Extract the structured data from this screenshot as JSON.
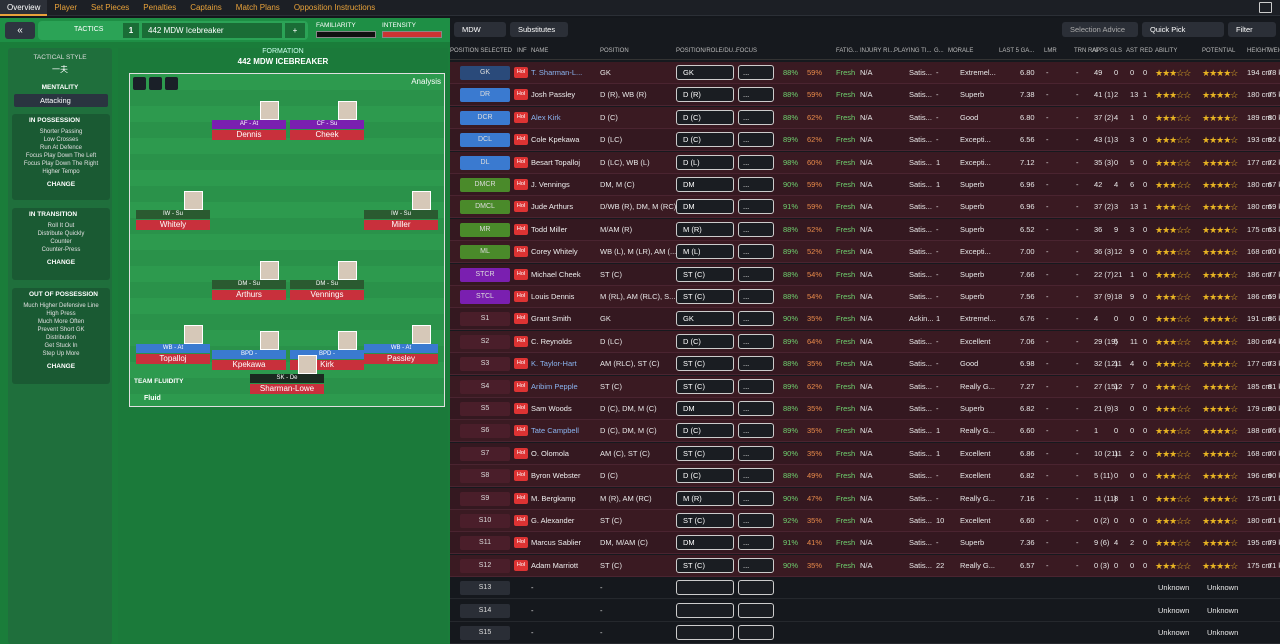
{
  "topnav": {
    "tabs": [
      "Overview",
      "Player",
      "Set Pieces",
      "Penalties",
      "Captains",
      "Match Plans",
      "Opposition Instructions"
    ]
  },
  "tactics": {
    "label": "TACTICS",
    "number": "1",
    "name": "442 MDW Icebreaker",
    "familiarity": "FAMILIARITY",
    "intensity": "INTENSITY"
  },
  "sidebar": {
    "tactical_style_label": "TACTICAL STYLE",
    "tactical_style": "一夫",
    "mentality_label": "MENTALITY",
    "mentality": "Attacking",
    "in_possession": {
      "title": "IN POSSESSION",
      "items": [
        "Shorter Passing",
        "Low Crosses",
        "Run At Defence",
        "Focus Play Down The Left",
        "Focus Play Down The Right",
        "Higher Tempo"
      ],
      "change": "CHANGE"
    },
    "in_transition": {
      "title": "IN TRANSITION",
      "items": [
        "Roll It Out",
        "Distribute Quickly",
        "Counter",
        "Counter-Press"
      ],
      "change": "CHANGE"
    },
    "out_possession": {
      "title": "OUT OF POSSESSION",
      "items": [
        "Much Higher Defensive Line",
        "High Press",
        "Much More Often",
        "Prevent Short GK",
        "Distribution",
        "Get Stuck In",
        "Step Up More"
      ],
      "change": "CHANGE"
    }
  },
  "formation": {
    "label": "FORMATION",
    "name": "442 MDW ICEBREAKER",
    "analysis": "Analysis",
    "team_fluidity": "TEAM FLUIDITY",
    "fluidity": "Fluid",
    "players": [
      {
        "role": "AF - At",
        "name": "Dennis"
      },
      {
        "role": "CF - Su",
        "name": "Cheek"
      },
      {
        "role": "IW - Su",
        "name": "Whitely"
      },
      {
        "role": "IW - Su",
        "name": "Miller"
      },
      {
        "role": "DM - Su",
        "name": "Arthurs"
      },
      {
        "role": "DM - Su",
        "name": "Vennings"
      },
      {
        "role": "WB - At",
        "name": "Topalloj"
      },
      {
        "role": "BPD - ",
        "name": "Kpekawa"
      },
      {
        "role": "BPD - ",
        "name": "Kirk"
      },
      {
        "role": "WB - At",
        "name": "Passley"
      },
      {
        "role": "SK - De",
        "name": "Sharman-Lowe"
      }
    ]
  },
  "toolbar": {
    "view": "MDW",
    "substitutes": "Substitutes",
    "selection_advice": "Selection Advice",
    "quick_pick": "Quick Pick",
    "filter": "Filter"
  },
  "headers": [
    "POSITION SELECTED",
    "INF",
    "NAME",
    "POSITION",
    "POSITION/ROLE/DU...",
    "FOCUS",
    "FATIG...",
    "INJURY RI...",
    "PLAYING TI...",
    "G...",
    "MORALE",
    "LAST 5 GA...",
    "LMR",
    "TRN RAT",
    "APPS",
    "GLS",
    "AST",
    "RED",
    "ABILITY",
    "POTENTIAL",
    "HEIGHT",
    "WEIG"
  ],
  "rows": [
    {
      "pos": "GK",
      "name": "T. Sharman-L...",
      "position": "GK",
      "role": "GK",
      "cond": "88%",
      "sharp": "59%",
      "fat": "Fresh",
      "inj": "N/A",
      "pt": "Satis...",
      "g": "-",
      "morale": "Extremel...",
      "rating": "6.80",
      "apps": "49",
      "gls": "0",
      "ast": "0",
      "red": "0",
      "height": "194 cm",
      "weight": "78 k"
    },
    {
      "pos": "DR",
      "name": "Josh Passley",
      "position": "D (R), WB (R)",
      "role": "D (R)",
      "cond": "88%",
      "sharp": "59%",
      "fat": "Fresh",
      "inj": "N/A",
      "pt": "Satis...",
      "g": "-",
      "morale": "Superb",
      "rating": "7.38",
      "apps": "41 (1)",
      "gls": "2",
      "ast": "13",
      "red": "1",
      "height": "180 cm",
      "weight": "75 k"
    },
    {
      "pos": "DCR",
      "name": "Alex Kirk",
      "position": "D (C)",
      "role": "D (C)",
      "cond": "88%",
      "sharp": "62%",
      "fat": "Fresh",
      "inj": "N/A",
      "pt": "Satis...",
      "g": "-",
      "morale": "Good",
      "rating": "6.80",
      "apps": "37 (2)",
      "gls": "4",
      "ast": "1",
      "red": "0",
      "height": "189 cm",
      "weight": "80 k"
    },
    {
      "pos": "DCL",
      "name": "Cole Kpekawa",
      "position": "D (LC)",
      "role": "D (C)",
      "cond": "89%",
      "sharp": "62%",
      "fat": "Fresh",
      "inj": "N/A",
      "pt": "Satis...",
      "g": "-",
      "morale": "Excepti...",
      "rating": "6.56",
      "apps": "43 (1)",
      "gls": "3",
      "ast": "3",
      "red": "0",
      "height": "193 cm",
      "weight": "92 k"
    },
    {
      "pos": "DL",
      "name": "Besart Topalloj",
      "position": "D (LC), WB (L)",
      "role": "D (L)",
      "cond": "98%",
      "sharp": "60%",
      "fat": "Fresh",
      "inj": "N/A",
      "pt": "Satis...",
      "g": "1",
      "morale": "Excepti...",
      "rating": "7.12",
      "apps": "35 (3)",
      "gls": "0",
      "ast": "5",
      "red": "0",
      "height": "177 cm",
      "weight": "72 k"
    },
    {
      "pos": "DMCR",
      "name": "J. Vennings",
      "position": "DM, M (C)",
      "role": "DM",
      "cond": "90%",
      "sharp": "59%",
      "fat": "Fresh",
      "inj": "N/A",
      "pt": "Satis...",
      "g": "1",
      "morale": "Superb",
      "rating": "6.96",
      "apps": "42",
      "gls": "4",
      "ast": "6",
      "red": "0",
      "height": "180 cm",
      "weight": "67 k"
    },
    {
      "pos": "DMCL",
      "name": "Jude Arthurs",
      "position": "D/WB (R), DM, M (RC)",
      "role": "DM",
      "cond": "91%",
      "sharp": "59%",
      "fat": "Fresh",
      "inj": "N/A",
      "pt": "Satis...",
      "g": "-",
      "morale": "Superb",
      "rating": "6.96",
      "apps": "37 (2)",
      "gls": "3",
      "ast": "13",
      "red": "1",
      "height": "180 cm",
      "weight": "69 k"
    },
    {
      "pos": "MR",
      "name": "Todd Miller",
      "position": "M/AM (R)",
      "role": "M (R)",
      "cond": "88%",
      "sharp": "52%",
      "fat": "Fresh",
      "inj": "N/A",
      "pt": "Satis...",
      "g": "-",
      "morale": "Superb",
      "rating": "6.52",
      "apps": "36",
      "gls": "9",
      "ast": "3",
      "red": "0",
      "height": "175 cm",
      "weight": "63 k"
    },
    {
      "pos": "ML",
      "name": "Corey Whitely",
      "position": "WB (L), M (LR), AM (...",
      "role": "M (L)",
      "cond": "89%",
      "sharp": "52%",
      "fat": "Fresh",
      "inj": "N/A",
      "pt": "Satis...",
      "g": "-",
      "morale": "Excepti...",
      "rating": "7.00",
      "apps": "36 (3)",
      "gls": "12",
      "ast": "9",
      "red": "0",
      "height": "168 cm",
      "weight": "70 k"
    },
    {
      "pos": "STCR",
      "name": "Michael Cheek",
      "position": "ST (C)",
      "role": "ST (C)",
      "cond": "88%",
      "sharp": "54%",
      "fat": "Fresh",
      "inj": "N/A",
      "pt": "Satis...",
      "g": "-",
      "morale": "Superb",
      "rating": "7.66",
      "apps": "22 (7)",
      "gls": "21",
      "ast": "1",
      "red": "0",
      "height": "186 cm",
      "weight": "77 k"
    },
    {
      "pos": "STCL",
      "name": "Louis Dennis",
      "position": "M (RL), AM (RLC), S...",
      "role": "ST (C)",
      "cond": "88%",
      "sharp": "54%",
      "fat": "Fresh",
      "inj": "N/A",
      "pt": "Satis...",
      "g": "-",
      "morale": "Superb",
      "rating": "7.56",
      "apps": "37 (9)",
      "gls": "18",
      "ast": "9",
      "red": "0",
      "height": "186 cm",
      "weight": "69 k"
    },
    {
      "pos": "S1",
      "name": "Grant Smith",
      "position": "GK",
      "role": "GK",
      "cond": "90%",
      "sharp": "35%",
      "fat": "Fresh",
      "inj": "N/A",
      "pt": "Askin...",
      "g": "1",
      "morale": "Extremel...",
      "rating": "6.76",
      "apps": "4",
      "gls": "0",
      "ast": "0",
      "red": "0",
      "height": "191 cm",
      "weight": "86 k"
    },
    {
      "pos": "S2",
      "name": "C. Reynolds",
      "position": "D (LC)",
      "role": "D (C)",
      "cond": "89%",
      "sharp": "64%",
      "fat": "Fresh",
      "inj": "N/A",
      "pt": "Satis...",
      "g": "-",
      "morale": "Excellent",
      "rating": "7.06",
      "apps": "29 (19)",
      "gls": "5",
      "ast": "11",
      "red": "0",
      "height": "180 cm",
      "weight": "74 k"
    },
    {
      "pos": "S3",
      "name": "K. Taylor-Hart",
      "position": "AM (RLC), ST (C)",
      "role": "ST (C)",
      "cond": "88%",
      "sharp": "35%",
      "fat": "Fresh",
      "inj": "N/A",
      "pt": "Satis...",
      "g": "-",
      "morale": "Good",
      "rating": "6.98",
      "apps": "32 (12)",
      "gls": "11",
      "ast": "4",
      "red": "0",
      "height": "177 cm",
      "weight": "73 k"
    },
    {
      "pos": "S4",
      "name": "Aribim Pepple",
      "position": "ST (C)",
      "role": "ST (C)",
      "cond": "89%",
      "sharp": "62%",
      "fat": "Fresh",
      "inj": "N/A",
      "pt": "Satis...",
      "g": "-",
      "morale": "Really G...",
      "rating": "7.27",
      "apps": "27 (15)",
      "gls": "12",
      "ast": "7",
      "red": "0",
      "height": "185 cm",
      "weight": "81 k"
    },
    {
      "pos": "S5",
      "name": "Sam Woods",
      "position": "D (C), DM, M (C)",
      "role": "DM",
      "cond": "88%",
      "sharp": "35%",
      "fat": "Fresh",
      "inj": "N/A",
      "pt": "Satis...",
      "g": "-",
      "morale": "Superb",
      "rating": "6.82",
      "apps": "21 (9)",
      "gls": "3",
      "ast": "0",
      "red": "0",
      "height": "179 cm",
      "weight": "80 k"
    },
    {
      "pos": "S6",
      "name": "Tate Campbell",
      "position": "D (C), DM, M (C)",
      "role": "D (C)",
      "cond": "89%",
      "sharp": "35%",
      "fat": "Fresh",
      "inj": "N/A",
      "pt": "Satis...",
      "g": "1",
      "morale": "Really G...",
      "rating": "6.60",
      "apps": "1",
      "gls": "0",
      "ast": "0",
      "red": "0",
      "height": "188 cm",
      "weight": "76 k"
    },
    {
      "pos": "S7",
      "name": "O. Olomola",
      "position": "AM (C), ST (C)",
      "role": "ST (C)",
      "cond": "90%",
      "sharp": "35%",
      "fat": "Fresh",
      "inj": "N/A",
      "pt": "Satis...",
      "g": "1",
      "morale": "Excellent",
      "rating": "6.86",
      "apps": "10 (21)",
      "gls": "11",
      "ast": "2",
      "red": "0",
      "height": "168 cm",
      "weight": "70 k"
    },
    {
      "pos": "S8",
      "name": "Byron Webster",
      "position": "D (C)",
      "role": "D (C)",
      "cond": "88%",
      "sharp": "49%",
      "fat": "Fresh",
      "inj": "N/A",
      "pt": "Satis...",
      "g": "-",
      "morale": "Excellent",
      "rating": "6.82",
      "apps": "5 (11)",
      "gls": "0",
      "ast": "0",
      "red": "0",
      "height": "196 cm",
      "weight": "90 k"
    },
    {
      "pos": "S9",
      "name": "M. Bergkamp",
      "position": "M (R), AM (RC)",
      "role": "M (R)",
      "cond": "90%",
      "sharp": "47%",
      "fat": "Fresh",
      "inj": "N/A",
      "pt": "Satis...",
      "g": "-",
      "morale": "Really G...",
      "rating": "7.16",
      "apps": "11 (11)",
      "gls": "8",
      "ast": "1",
      "red": "0",
      "height": "175 cm",
      "weight": "71 k"
    },
    {
      "pos": "S10",
      "name": "G. Alexander",
      "position": "ST (C)",
      "role": "ST (C)",
      "cond": "92%",
      "sharp": "35%",
      "fat": "Fresh",
      "inj": "N/A",
      "pt": "Satis...",
      "g": "10",
      "morale": "Excellent",
      "rating": "6.60",
      "apps": "0 (2)",
      "gls": "0",
      "ast": "0",
      "red": "0",
      "height": "180 cm",
      "weight": "71 k"
    },
    {
      "pos": "S11",
      "name": "Marcus Sablier",
      "position": "DM, M/AM (C)",
      "role": "DM",
      "cond": "91%",
      "sharp": "41%",
      "fat": "Fresh",
      "inj": "N/A",
      "pt": "Satis...",
      "g": "-",
      "morale": "Superb",
      "rating": "7.36",
      "apps": "9 (6)",
      "gls": "4",
      "ast": "2",
      "red": "0",
      "height": "195 cm",
      "weight": "79 k"
    },
    {
      "pos": "S12",
      "name": "Adam Marriott",
      "position": "ST (C)",
      "role": "ST (C)",
      "cond": "90%",
      "sharp": "35%",
      "fat": "Fresh",
      "inj": "N/A",
      "pt": "Satis...",
      "g": "22",
      "morale": "Really G...",
      "rating": "6.57",
      "apps": "0 (3)",
      "gls": "0",
      "ast": "0",
      "red": "0",
      "height": "175 cm",
      "weight": "71 k"
    },
    {
      "pos": "S13",
      "name": "-",
      "position": "-",
      "unknown": "Unknown"
    },
    {
      "pos": "S14",
      "name": "-",
      "position": "-",
      "unknown": "Unknown"
    },
    {
      "pos": "S15",
      "name": "-",
      "position": "-",
      "unknown": "Unknown"
    }
  ]
}
